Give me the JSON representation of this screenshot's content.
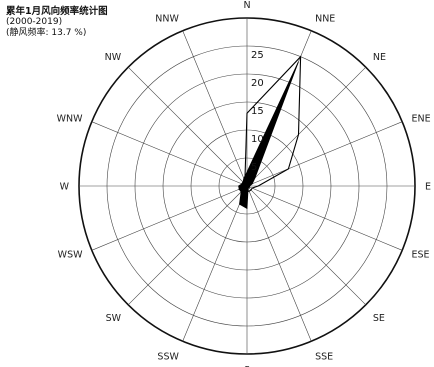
{
  "title": {
    "main": "累年1月风向频率统计图",
    "period": "(2000-2019)",
    "calm": "(静风频率: 13.7 %)"
  },
  "chart_data": {
    "type": "polar-rose",
    "directions": [
      "N",
      "NNE",
      "NE",
      "ENE",
      "E",
      "ESE",
      "SE",
      "SSE",
      "S",
      "SSW",
      "SW",
      "WSW",
      "W",
      "WNW",
      "NW",
      "NNW"
    ],
    "radial_ticks": [
      5,
      10,
      15,
      20,
      25
    ],
    "rmax": 30,
    "series": [
      {
        "values": [
          2.5,
          24.0,
          2.0,
          1.0,
          0.5,
          0.5,
          0.5,
          0.5,
          4.0,
          3.5,
          1.5,
          1.5,
          1.5,
          1.0,
          1.0,
          1.5
        ]
      },
      {
        "values": [
          13.0,
          25.0,
          13.0,
          8.0,
          2.0,
          1.0,
          1.0,
          1.0,
          1.0,
          1.0,
          1.0,
          1.5,
          1.0,
          1.0,
          1.0,
          1.0
        ]
      }
    ]
  }
}
